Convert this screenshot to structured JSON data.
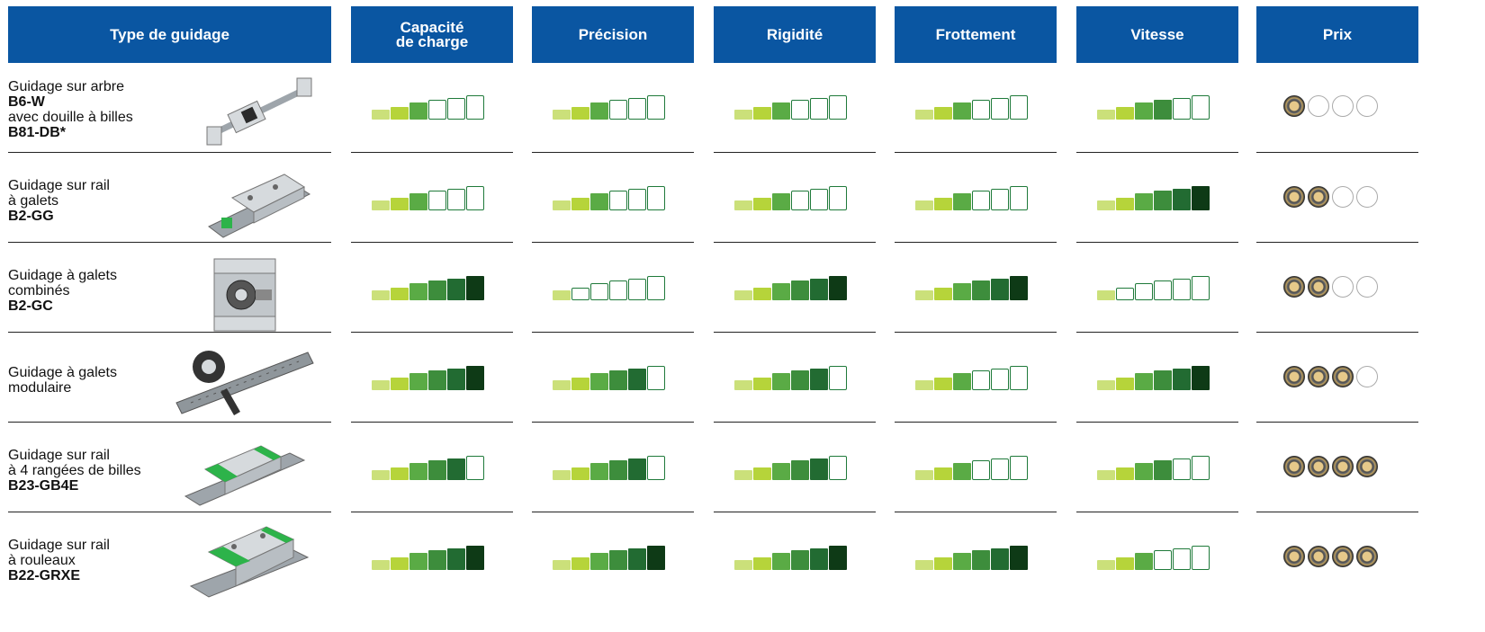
{
  "headers": [
    {
      "label": "Type de guidage"
    },
    {
      "label": "Capacité\nde charge"
    },
    {
      "label": "Précision"
    },
    {
      "label": "Rigidité"
    },
    {
      "label": "Frottement"
    },
    {
      "label": "Vitesse"
    },
    {
      "label": "Prix"
    }
  ],
  "bar_colors": [
    "#cbe07a",
    "#b6d43a",
    "#5aab45",
    "#3d8d3c",
    "#226b32",
    "#0e3a16"
  ],
  "empty_border_color": "#1f7a3a",
  "rows": [
    {
      "lines": [
        "Guidage sur arbre",
        "B6-W",
        "avec douille à billes",
        "B81-DB*"
      ],
      "bold": [
        false,
        true,
        false,
        true
      ],
      "product_icon": "shaft-guide-icon",
      "ratings": [
        3,
        3,
        3,
        3,
        4
      ],
      "price": 1
    },
    {
      "lines": [
        "Guidage sur rail",
        "à galets",
        "B2-GG"
      ],
      "bold": [
        false,
        false,
        true
      ],
      "product_icon": "roller-rail-guide-icon",
      "ratings": [
        3,
        3,
        3,
        3,
        6
      ],
      "price": 2
    },
    {
      "lines": [
        "Guidage à galets",
        "combinés",
        "B2-GC"
      ],
      "bold": [
        false,
        false,
        true
      ],
      "product_icon": "combined-roller-guide-icon",
      "ratings": [
        6,
        1,
        6,
        6,
        1
      ],
      "price": 2
    },
    {
      "lines": [
        "Guidage à galets",
        "modulaire"
      ],
      "bold": [
        false,
        false
      ],
      "product_icon": "modular-roller-guide-icon",
      "ratings": [
        6,
        5,
        5,
        3,
        6
      ],
      "price": 3
    },
    {
      "lines": [
        "Guidage sur rail",
        "à 4 rangées de billes",
        "B23-GB4E"
      ],
      "bold": [
        false,
        false,
        true
      ],
      "product_icon": "ball-rail-guide-icon",
      "ratings": [
        5,
        5,
        5,
        3,
        4
      ],
      "price": 4
    },
    {
      "lines": [
        "Guidage sur rail",
        "à rouleaux",
        "B22-GRXE"
      ],
      "bold": [
        false,
        false,
        true
      ],
      "product_icon": "roller-rail-carriage-icon",
      "ratings": [
        6,
        6,
        6,
        6,
        3
      ],
      "price": 4
    }
  ]
}
